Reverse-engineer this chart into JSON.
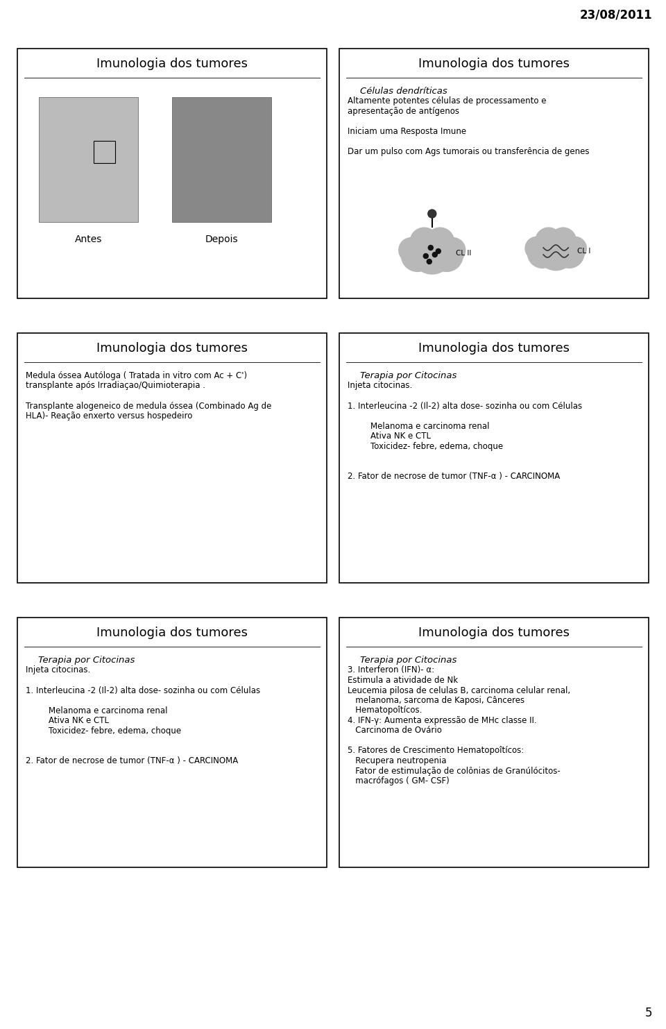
{
  "date": "23/08/2011",
  "page_num": "5",
  "bg_color": "#ffffff",
  "title_fontsize": 13,
  "body_fontsize": 8.5,
  "subtitle_fontsize": 9.5,
  "panels": [
    {
      "id": "xray",
      "title": "Imunologia dos tumores"
    },
    {
      "id": "cells",
      "title": "Imunologia dos tumores",
      "body_lines": [
        {
          "text": "Células dendríticas",
          "indent": 1
        },
        {
          "text": "Altamente potentes células de processamento e",
          "indent": 0
        },
        {
          "text": "apresentação de antígenos",
          "indent": 0
        },
        {
          "text": "",
          "indent": 0
        },
        {
          "text": "Iniciam uma Resposta Imune",
          "indent": 0
        },
        {
          "text": "",
          "indent": 0
        },
        {
          "text": "Dar um pulso com Ags tumorais ou transferência de genes",
          "indent": 0
        }
      ]
    },
    {
      "id": "text",
      "title": "Imunologia dos tumores",
      "body_lines": [
        {
          "text": "Medula óssea Autóloga ( Tratada in vitro com Ac + C')",
          "indent": 0
        },
        {
          "text": "transplante após Irradiaçao/Quimioterapia .",
          "indent": 0
        },
        {
          "text": "",
          "indent": 0
        },
        {
          "text": "Transplante alogeneico de medula óssea (Combinado Ag de",
          "indent": 0
        },
        {
          "text": "HLA)- Reação enxerto versus hospedeiro",
          "indent": 0
        }
      ]
    },
    {
      "id": "text",
      "title": "Imunologia dos tumores",
      "body_lines": [
        {
          "text": "Terapia por Citocinas",
          "indent": 1
        },
        {
          "text": "Injeta citocinas.",
          "indent": 0
        },
        {
          "text": "",
          "indent": 0
        },
        {
          "text": "1. Interleucina -2 (Il-2) alta dose- sozinha ou com Células",
          "indent": 0
        },
        {
          "text": "",
          "indent": 0
        },
        {
          "text": "Melanoma e carcinoma renal",
          "indent": 2
        },
        {
          "text": "Ativa NK e CTL",
          "indent": 2
        },
        {
          "text": "Toxicidez- febre, edema, choque",
          "indent": 2
        },
        {
          "text": "",
          "indent": 0
        },
        {
          "text": "",
          "indent": 0
        },
        {
          "text": "2. Fator de necrose de tumor (TNF-α ) - CARCINOMA",
          "indent": 0
        }
      ]
    },
    {
      "id": "text",
      "title": "Imunologia dos tumores",
      "body_lines": [
        {
          "text": "Terapia por Citocinas",
          "indent": 1
        },
        {
          "text": "Injeta citocinas.",
          "indent": 0
        },
        {
          "text": "",
          "indent": 0
        },
        {
          "text": "1. Interleucina -2 (Il-2) alta dose- sozinha ou com Células",
          "indent": 0
        },
        {
          "text": "",
          "indent": 0
        },
        {
          "text": "Melanoma e carcinoma renal",
          "indent": 2
        },
        {
          "text": "Ativa NK e CTL",
          "indent": 2
        },
        {
          "text": "Toxicidez- febre, edema, choque",
          "indent": 2
        },
        {
          "text": "",
          "indent": 0
        },
        {
          "text": "",
          "indent": 0
        },
        {
          "text": "2. Fator de necrose de tumor (TNF-α ) - CARCINOMA",
          "indent": 0
        }
      ]
    },
    {
      "id": "text",
      "title": "Imunologia dos tumores",
      "body_lines": [
        {
          "text": "Terapia por Citocinas",
          "indent": 1
        },
        {
          "text": "3. Interferon (IFN)- α:",
          "indent": 0
        },
        {
          "text": "Estimula a atividade de Nk",
          "indent": 0
        },
        {
          "text": "Leucemia pilosa de celulas B, carcinoma celular renal,",
          "indent": 0
        },
        {
          "text": "   melanoma, sarcoma de Kaposi, Cânceres",
          "indent": 0
        },
        {
          "text": "   Hematopoîtícos.",
          "indent": 0
        },
        {
          "text": "4. IFN-γ: Aumenta expressão de MHc classe II.",
          "indent": 0
        },
        {
          "text": "   Carcinoma de Ovário",
          "indent": 0
        },
        {
          "text": "",
          "indent": 0
        },
        {
          "text": "5. Fatores de Crescimento Hematopoîtícos:",
          "indent": 0
        },
        {
          "text": "   Recupera neutropenia",
          "indent": 0
        },
        {
          "text": "   Fator de estimulação de colônias de Granúlócitos-",
          "indent": 0
        },
        {
          "text": "   macrófagos ( GM- CSF)",
          "indent": 0
        }
      ]
    }
  ]
}
